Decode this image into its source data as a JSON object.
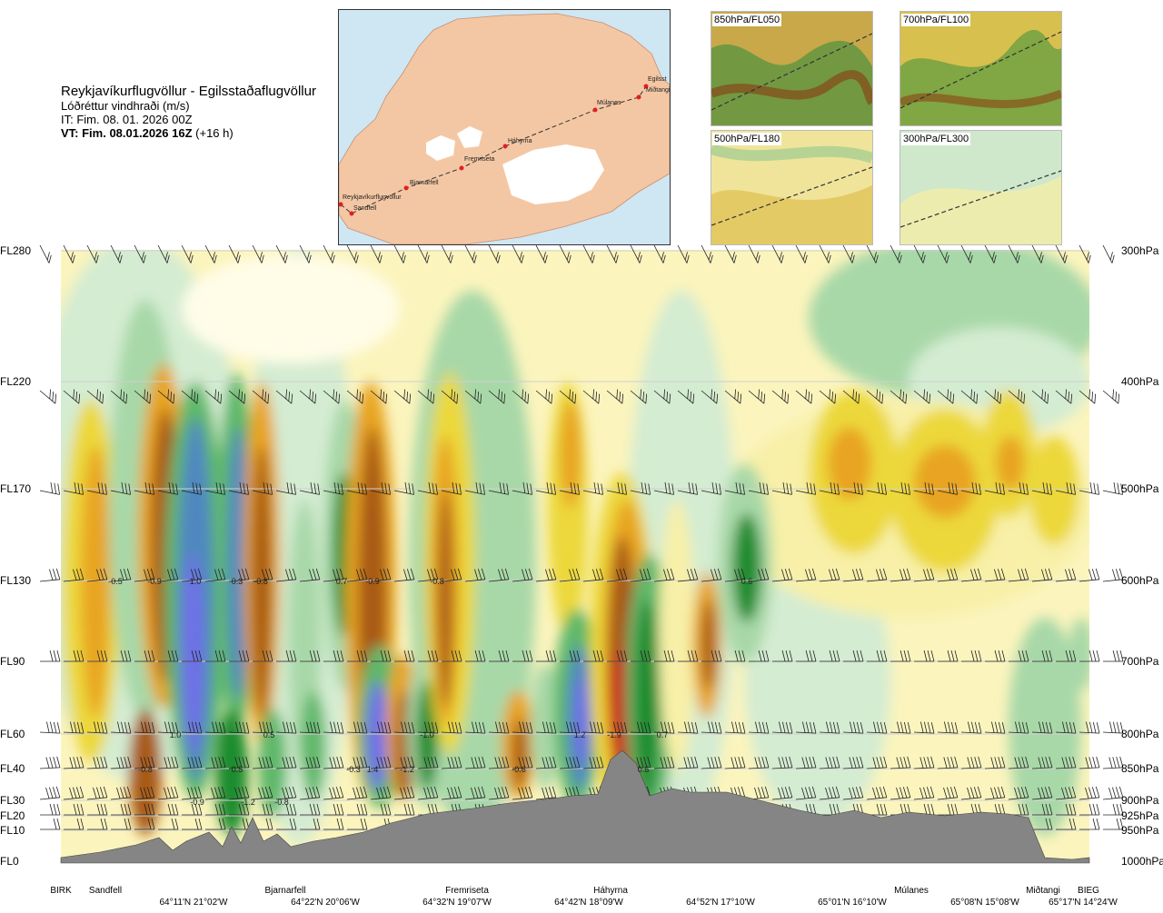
{
  "header": {
    "title": "Reykjavíkurflugvöllur - Egilsstaðaflugvöllur",
    "subtitle": "Lóðréttur vindhraði (m/s)",
    "issue_time": "IT: Fim. 08. 01. 2026 00Z",
    "valid_prefix": "VT: Fim. 08.01.2026 16Z",
    "valid_suffix": "(+16 h)"
  },
  "map": {
    "places": [
      "Reykjavíkurflugvöllur",
      "Sandfell",
      "Bjarnarfell",
      "Fremriseta",
      "Háhyrna",
      "Múlanes",
      "Egilsst",
      "Miðtangi"
    ]
  },
  "thumbnails": [
    {
      "label": "850hPa/FL050"
    },
    {
      "label": "700hPa/FL100"
    },
    {
      "label": "500hPa/FL180"
    },
    {
      "label": "300hPa/FL300"
    }
  ],
  "chart_data": {
    "type": "heatmap",
    "title": "Lóðréttur vindhraði (m/s)",
    "left_axis": [
      "FL280",
      "FL220",
      "FL170",
      "FL130",
      "FL90",
      "FL60",
      "FL40",
      "FL30",
      "FL20",
      "FL10",
      "FL0"
    ],
    "right_axis": [
      "300hPa",
      "400hPa",
      "500hPa",
      "600hPa",
      "700hPa",
      "800hPa",
      "850hPa",
      "900hPa",
      "925hPa",
      "950hPa",
      "1000hPa"
    ],
    "route_waypoints": [
      "BIRK",
      "Sandfell",
      "Bjarnarfell",
      "Fremriseta",
      "Háhyrna",
      "Múlanes",
      "Miðtangi",
      "BIEG"
    ],
    "coordinates": [
      "64°11'N 21°02'W",
      "64°22'N 20°06'W",
      "64°32'N 19°07'W",
      "64°42'N 18°09'W",
      "64°52'N 17°10'W",
      "65°01'N 16°10'W",
      "65°08'N 15°08'W",
      "65°17'N 14°24'W"
    ],
    "value_labels_600hPa": [
      "-0.5",
      "-0.9",
      "1.0",
      "0.3",
      "-0.8",
      "0.7",
      "-0.9",
      "-0.8",
      "0.6"
    ],
    "value_labels_800hPa": [
      "1.0",
      "0.5",
      "-1.0",
      "1.2",
      "-1.9",
      "0.7"
    ],
    "value_labels_850hPa": [
      "-0.8",
      "0.5",
      "-0.3",
      "1.4",
      "-1.2",
      "-0.6",
      "0.6"
    ],
    "value_labels_900hPa": [
      "-0.9",
      "-1.2",
      "-0.8"
    ],
    "colors": {
      "strong_down": "#7070e8",
      "down": "#5088c0",
      "green_dark": "#1e8c2e",
      "green_mid": "#5fb86a",
      "green_light": "#a8d8a8",
      "green_pale": "#d4ecd2",
      "neutral": "#fffde8",
      "yellow_pale": "#f8f0a8",
      "yellow": "#ecd83a",
      "orange": "#e8a420",
      "brown": "#a85a18",
      "red": "#c81e1e",
      "terrain": "#858585"
    }
  }
}
